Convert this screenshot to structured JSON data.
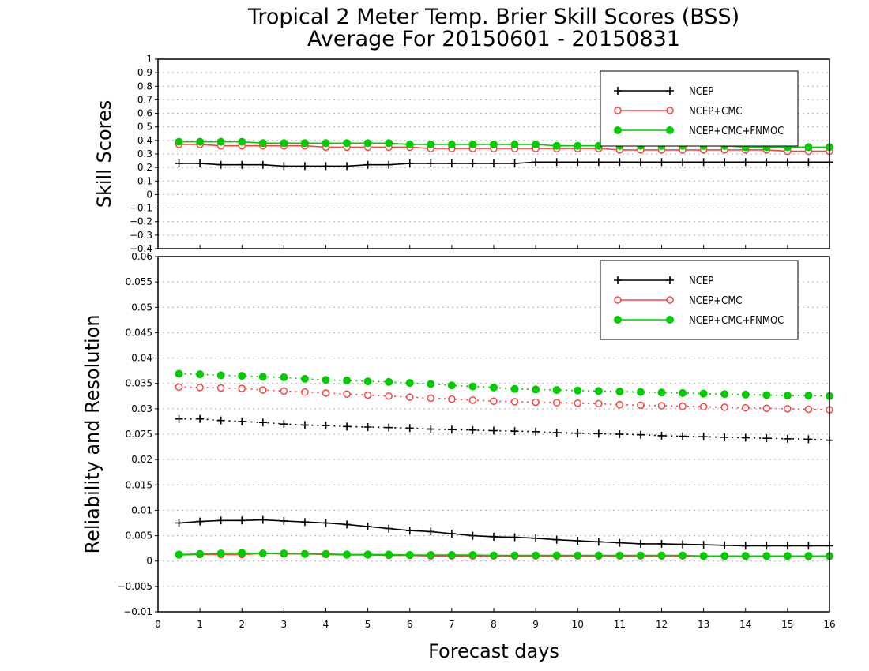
{
  "title_line1": "Tropical 2 Meter Temp. Brier Skill Scores (BSS)",
  "title_line2": "Average For 20150601 - 20150831",
  "xlabel": "Forecast days",
  "x_ticks": [
    "0",
    "1",
    "2",
    "3",
    "4",
    "5",
    "6",
    "7",
    "8",
    "9",
    "10",
    "11",
    "12",
    "13",
    "14",
    "15",
    "16"
  ],
  "colors": {
    "NCEP": "#000000",
    "NCEP+CMC": "#ff4040",
    "NCEP+CMC+FNMOC": "#00cc00"
  },
  "chart_data": [
    {
      "type": "line",
      "ylabel": "Skill Scores",
      "xlim": [
        0,
        16
      ],
      "ylim": [
        -0.4,
        1
      ],
      "y_ticks": [
        "-0.4",
        "-0.3",
        "-0.2",
        "-0.1",
        "0",
        "0.1",
        "0.2",
        "0.3",
        "0.4",
        "0.5",
        "0.6",
        "0.7",
        "0.8",
        "0.9",
        "1"
      ],
      "grid": true,
      "legend": {
        "placement": "top-right",
        "entries": [
          "NCEP",
          "NCEP+CMC",
          "NCEP+CMC+FNMOC"
        ]
      },
      "x": [
        0.5,
        1,
        1.5,
        2,
        2.5,
        3,
        3.5,
        4,
        4.5,
        5,
        5.5,
        6,
        6.5,
        7,
        7.5,
        8,
        8.5,
        9,
        9.5,
        10,
        10.5,
        11,
        11.5,
        12,
        12.5,
        13,
        13.5,
        14,
        14.5,
        15,
        15.5,
        16
      ],
      "series": [
        {
          "name": "NCEP",
          "marker": "plus",
          "line": "solid",
          "values": [
            0.23,
            0.23,
            0.22,
            0.22,
            0.22,
            0.21,
            0.21,
            0.21,
            0.21,
            0.22,
            0.22,
            0.23,
            0.23,
            0.23,
            0.23,
            0.23,
            0.23,
            0.24,
            0.24,
            0.24,
            0.24,
            0.24,
            0.24,
            0.24,
            0.24,
            0.24,
            0.24,
            0.24,
            0.24,
            0.24,
            0.24,
            0.24
          ]
        },
        {
          "name": "NCEP+CMC",
          "marker": "open-circle",
          "line": "solid",
          "values": [
            0.37,
            0.37,
            0.36,
            0.36,
            0.36,
            0.36,
            0.36,
            0.35,
            0.35,
            0.35,
            0.35,
            0.35,
            0.34,
            0.34,
            0.34,
            0.34,
            0.34,
            0.34,
            0.34,
            0.34,
            0.34,
            0.33,
            0.33,
            0.33,
            0.33,
            0.33,
            0.33,
            0.33,
            0.33,
            0.32,
            0.32,
            0.32
          ]
        },
        {
          "name": "NCEP+CMC+FNMOC",
          "marker": "filled-circle",
          "line": "solid",
          "values": [
            0.39,
            0.39,
            0.39,
            0.39,
            0.38,
            0.38,
            0.38,
            0.38,
            0.38,
            0.38,
            0.38,
            0.37,
            0.37,
            0.37,
            0.37,
            0.37,
            0.37,
            0.37,
            0.36,
            0.36,
            0.36,
            0.36,
            0.36,
            0.36,
            0.36,
            0.36,
            0.36,
            0.35,
            0.35,
            0.35,
            0.35,
            0.35
          ]
        }
      ]
    },
    {
      "type": "line",
      "ylabel": "Reliability and Resolution",
      "xlim": [
        0,
        16
      ],
      "ylim": [
        -0.01,
        0.06
      ],
      "y_ticks": [
        "-0.01",
        "-0.005",
        "0",
        "0.005",
        "0.01",
        "0.015",
        "0.02",
        "0.025",
        "0.03",
        "0.035",
        "0.04",
        "0.045",
        "0.05",
        "0.055",
        "0.06"
      ],
      "grid": true,
      "legend": {
        "placement": "top-right",
        "entries": [
          "NCEP",
          "NCEP+CMC",
          "NCEP+CMC+FNMOC"
        ]
      },
      "x": [
        0.5,
        1,
        1.5,
        2,
        2.5,
        3,
        3.5,
        4,
        4.5,
        5,
        5.5,
        6,
        6.5,
        7,
        7.5,
        8,
        8.5,
        9,
        9.5,
        10,
        10.5,
        11,
        11.5,
        12,
        12.5,
        13,
        13.5,
        14,
        14.5,
        15,
        15.5,
        16
      ],
      "series": [
        {
          "name": "NCEP",
          "marker": "plus",
          "line": "dotted",
          "values": [
            0.028,
            0.028,
            0.0277,
            0.0275,
            0.0273,
            0.027,
            0.0268,
            0.0267,
            0.0265,
            0.0264,
            0.0263,
            0.0262,
            0.026,
            0.0259,
            0.0258,
            0.0257,
            0.0256,
            0.0255,
            0.0253,
            0.0252,
            0.0251,
            0.025,
            0.0249,
            0.0247,
            0.0246,
            0.0245,
            0.0244,
            0.0243,
            0.0242,
            0.0241,
            0.024,
            0.0238
          ]
        },
        {
          "name": "NCEP+CMC",
          "marker": "open-circle",
          "line": "dotted",
          "values": [
            0.0343,
            0.0342,
            0.0341,
            0.034,
            0.0337,
            0.0335,
            0.0333,
            0.0331,
            0.0329,
            0.0327,
            0.0325,
            0.0323,
            0.0321,
            0.0319,
            0.0317,
            0.0315,
            0.0314,
            0.0313,
            0.0312,
            0.0311,
            0.031,
            0.0308,
            0.0307,
            0.0306,
            0.0305,
            0.0304,
            0.0303,
            0.0302,
            0.0301,
            0.03,
            0.0299,
            0.0298
          ]
        },
        {
          "name": "NCEP+CMC+FNMOC",
          "marker": "filled-circle",
          "line": "dotted",
          "values": [
            0.0369,
            0.0368,
            0.0366,
            0.0365,
            0.0363,
            0.0362,
            0.0359,
            0.0357,
            0.0356,
            0.0354,
            0.0353,
            0.0351,
            0.0349,
            0.0346,
            0.0344,
            0.0342,
            0.0339,
            0.0338,
            0.0337,
            0.0336,
            0.0335,
            0.0334,
            0.0333,
            0.0332,
            0.0331,
            0.033,
            0.0329,
            0.0328,
            0.0327,
            0.0326,
            0.0326,
            0.0325
          ]
        },
        {
          "name": "NCEP",
          "marker": "plus",
          "line": "solid",
          "values": [
            0.0075,
            0.0078,
            0.008,
            0.008,
            0.0081,
            0.0079,
            0.0077,
            0.0075,
            0.0072,
            0.0068,
            0.0064,
            0.006,
            0.0058,
            0.0054,
            0.005,
            0.0048,
            0.0047,
            0.0045,
            0.0042,
            0.004,
            0.0038,
            0.0036,
            0.0034,
            0.0034,
            0.0033,
            0.0032,
            0.0031,
            0.003,
            0.003,
            0.003,
            0.003,
            0.003
          ]
        },
        {
          "name": "NCEP+CMC",
          "marker": "open-circle",
          "line": "solid",
          "values": [
            0.0012,
            0.0013,
            0.0013,
            0.0013,
            0.0015,
            0.0014,
            0.0014,
            0.0013,
            0.0012,
            0.0012,
            0.0011,
            0.0011,
            0.001,
            0.001,
            0.001,
            0.001,
            0.001,
            0.001,
            0.001,
            0.001,
            0.001,
            0.001,
            0.001,
            0.001,
            0.001,
            0.001,
            0.001,
            0.001,
            0.001,
            0.001,
            0.0009,
            0.0009
          ]
        },
        {
          "name": "NCEP+CMC+FNMOC",
          "marker": "filled-circle",
          "line": "solid",
          "values": [
            0.0013,
            0.0014,
            0.0015,
            0.0016,
            0.0015,
            0.0015,
            0.0014,
            0.0014,
            0.0013,
            0.0013,
            0.0013,
            0.0012,
            0.0012,
            0.0012,
            0.0012,
            0.0011,
            0.0011,
            0.0011,
            0.0011,
            0.0011,
            0.0011,
            0.0011,
            0.0011,
            0.0011,
            0.0011,
            0.001,
            0.001,
            0.001,
            0.001,
            0.001,
            0.001,
            0.001
          ]
        }
      ]
    }
  ]
}
